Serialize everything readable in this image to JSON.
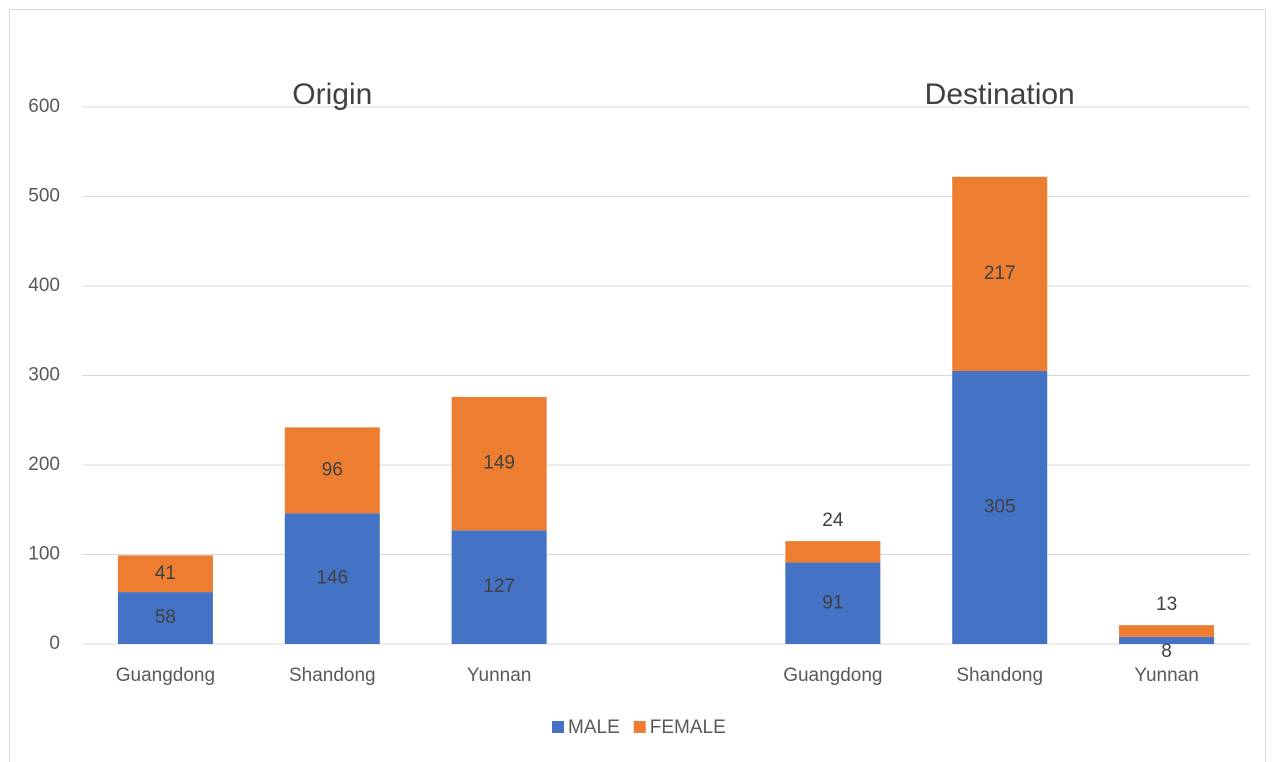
{
  "chart_data": {
    "type": "stacked_bar",
    "annotations": [
      "Origin",
      "Destination"
    ],
    "categories": [
      "Guangdong",
      "Shandong",
      "Yunnan",
      null,
      "Guangdong",
      "Shandong",
      "Yunnan"
    ],
    "series": [
      {
        "name": "MALE",
        "color": "#4472c4",
        "values": [
          58,
          146,
          127,
          null,
          91,
          305,
          8
        ]
      },
      {
        "name": "FEMALE",
        "color": "#ed7d31",
        "values": [
          41,
          96,
          149,
          null,
          24,
          217,
          13
        ]
      }
    ],
    "ylim": [
      0,
      600
    ],
    "yticks": [
      0,
      100,
      200,
      300,
      400,
      500,
      600
    ],
    "grid": true,
    "legend": "bottom"
  }
}
